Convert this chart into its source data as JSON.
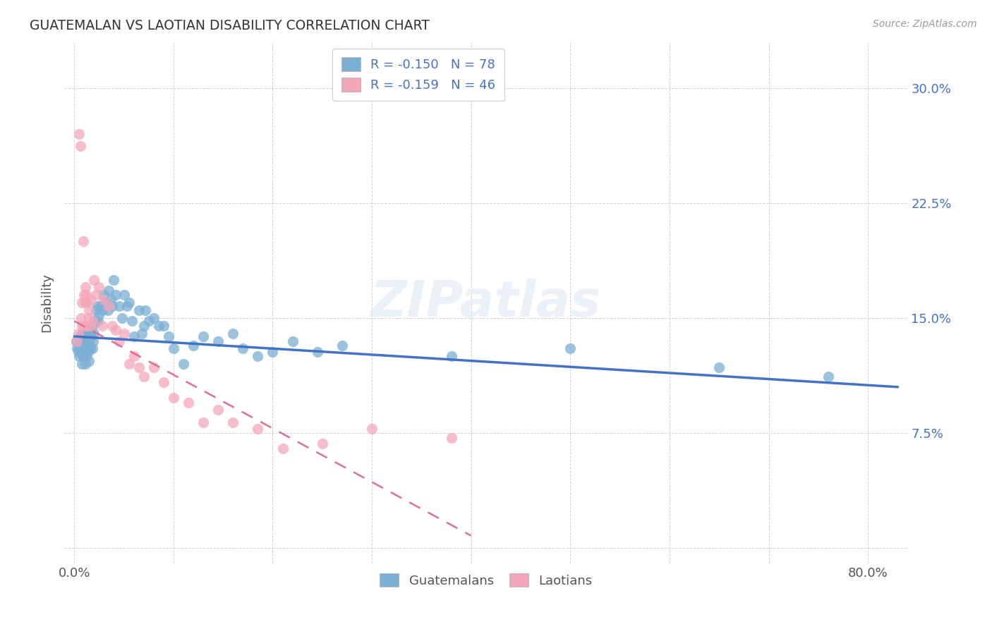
{
  "title": "GUATEMALAN VS LAOTIAN DISABILITY CORRELATION CHART",
  "source": "Source: ZipAtlas.com",
  "ylabel": "Disability",
  "x_ticks": [
    0.0,
    0.1,
    0.2,
    0.3,
    0.4,
    0.5,
    0.6,
    0.7,
    0.8
  ],
  "x_tick_labels": [
    "0.0%",
    "",
    "",
    "",
    "",
    "",
    "",
    "",
    "80.0%"
  ],
  "y_ticks": [
    0.0,
    0.075,
    0.15,
    0.225,
    0.3
  ],
  "y_tick_labels": [
    "",
    "7.5%",
    "15.0%",
    "22.5%",
    "30.0%"
  ],
  "xlim": [
    -0.01,
    0.84
  ],
  "ylim": [
    -0.01,
    0.33
  ],
  "blue_color": "#7bafd4",
  "pink_color": "#f4a7b9",
  "blue_line_color": "#4472c4",
  "pink_line_color": "#e07090",
  "blue_line_x0": 0.0,
  "blue_line_y0": 0.138,
  "blue_line_x1": 0.83,
  "blue_line_y1": 0.105,
  "pink_line_x0": 0.0,
  "pink_line_y0": 0.148,
  "pink_line_x1": 0.4,
  "pink_line_y1": 0.008,
  "guatemalans_x": [
    0.002,
    0.003,
    0.004,
    0.005,
    0.005,
    0.006,
    0.007,
    0.007,
    0.008,
    0.008,
    0.009,
    0.009,
    0.01,
    0.01,
    0.011,
    0.011,
    0.012,
    0.012,
    0.013,
    0.013,
    0.014,
    0.014,
    0.015,
    0.015,
    0.016,
    0.016,
    0.017,
    0.018,
    0.018,
    0.019,
    0.02,
    0.021,
    0.022,
    0.023,
    0.024,
    0.025,
    0.027,
    0.028,
    0.03,
    0.032,
    0.034,
    0.035,
    0.037,
    0.038,
    0.04,
    0.042,
    0.045,
    0.048,
    0.05,
    0.053,
    0.055,
    0.058,
    0.06,
    0.065,
    0.068,
    0.07,
    0.072,
    0.075,
    0.08,
    0.085,
    0.09,
    0.095,
    0.1,
    0.11,
    0.12,
    0.13,
    0.145,
    0.16,
    0.17,
    0.185,
    0.2,
    0.22,
    0.245,
    0.27,
    0.38,
    0.5,
    0.65,
    0.76
  ],
  "guatemalans_y": [
    0.135,
    0.13,
    0.128,
    0.132,
    0.125,
    0.138,
    0.133,
    0.127,
    0.14,
    0.12,
    0.13,
    0.125,
    0.135,
    0.128,
    0.132,
    0.12,
    0.14,
    0.125,
    0.138,
    0.13,
    0.142,
    0.128,
    0.135,
    0.122,
    0.14,
    0.13,
    0.138,
    0.145,
    0.13,
    0.135,
    0.14,
    0.148,
    0.155,
    0.158,
    0.148,
    0.152,
    0.158,
    0.155,
    0.165,
    0.16,
    0.155,
    0.168,
    0.162,
    0.158,
    0.175,
    0.165,
    0.158,
    0.15,
    0.165,
    0.158,
    0.16,
    0.148,
    0.138,
    0.155,
    0.14,
    0.145,
    0.155,
    0.148,
    0.15,
    0.145,
    0.145,
    0.138,
    0.13,
    0.12,
    0.132,
    0.138,
    0.135,
    0.14,
    0.13,
    0.125,
    0.128,
    0.135,
    0.128,
    0.132,
    0.125,
    0.13,
    0.118,
    0.112
  ],
  "laotians_x": [
    0.003,
    0.004,
    0.005,
    0.006,
    0.007,
    0.008,
    0.008,
    0.009,
    0.01,
    0.01,
    0.011,
    0.011,
    0.012,
    0.012,
    0.013,
    0.014,
    0.015,
    0.016,
    0.017,
    0.018,
    0.02,
    0.022,
    0.025,
    0.028,
    0.03,
    0.035,
    0.038,
    0.042,
    0.045,
    0.05,
    0.055,
    0.06,
    0.065,
    0.07,
    0.08,
    0.09,
    0.1,
    0.115,
    0.13,
    0.145,
    0.16,
    0.185,
    0.21,
    0.25,
    0.3,
    0.38
  ],
  "laotians_y": [
    0.135,
    0.14,
    0.27,
    0.262,
    0.15,
    0.145,
    0.16,
    0.2,
    0.145,
    0.165,
    0.16,
    0.17,
    0.165,
    0.145,
    0.16,
    0.15,
    0.155,
    0.162,
    0.145,
    0.148,
    0.175,
    0.165,
    0.17,
    0.145,
    0.162,
    0.158,
    0.145,
    0.142,
    0.135,
    0.14,
    0.12,
    0.125,
    0.118,
    0.112,
    0.118,
    0.108,
    0.098,
    0.095,
    0.082,
    0.09,
    0.082,
    0.078,
    0.065,
    0.068,
    0.078,
    0.072
  ]
}
